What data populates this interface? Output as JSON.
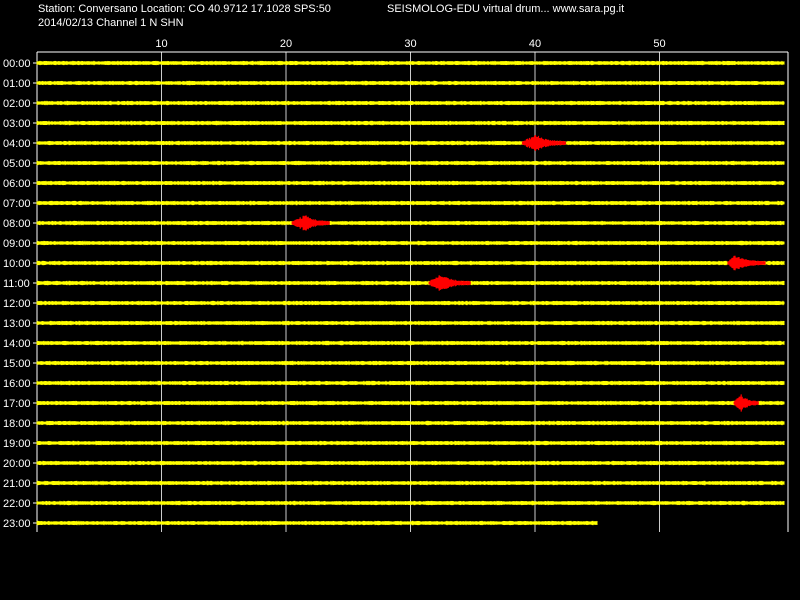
{
  "header": {
    "station_line": "Station: Conversano Location: CO 40.9712 17.1028 SPS:50",
    "date_line": "2014/02/13  Channel 1 N SHN",
    "app_line": "SEISMOLOG-EDU virtual drum... www.sara.pg.it"
  },
  "drum": {
    "minute_ticks": [
      "10",
      "20",
      "30",
      "40",
      "50"
    ],
    "hours": [
      "00:00",
      "01:00",
      "02:00",
      "03:00",
      "04:00",
      "05:00",
      "06:00",
      "07:00",
      "08:00",
      "09:00",
      "10:00",
      "11:00",
      "12:00",
      "13:00",
      "14:00",
      "15:00",
      "16:00",
      "17:00",
      "18:00",
      "19:00",
      "20:00",
      "21:00",
      "22:00",
      "23:00"
    ],
    "last_trace_minute": 45,
    "events": [
      {
        "hour": 4,
        "start_min": 39,
        "end_min": 42.5,
        "peak_min": 40
      },
      {
        "hour": 8,
        "start_min": 20.5,
        "end_min": 23.5,
        "peak_min": 21.5
      },
      {
        "hour": 10,
        "start_min": 55.5,
        "end_min": 58.5,
        "peak_min": 56
      },
      {
        "hour": 11,
        "start_min": 31.5,
        "end_min": 34.8,
        "peak_min": 32.3
      },
      {
        "hour": 17,
        "start_min": 56,
        "end_min": 58,
        "peak_min": 56.5
      }
    ],
    "colors": {
      "background": "#000000",
      "trace": "#ffff00",
      "event": "#ff0000",
      "grid": "#ffffff",
      "text": "#ffffff"
    }
  }
}
